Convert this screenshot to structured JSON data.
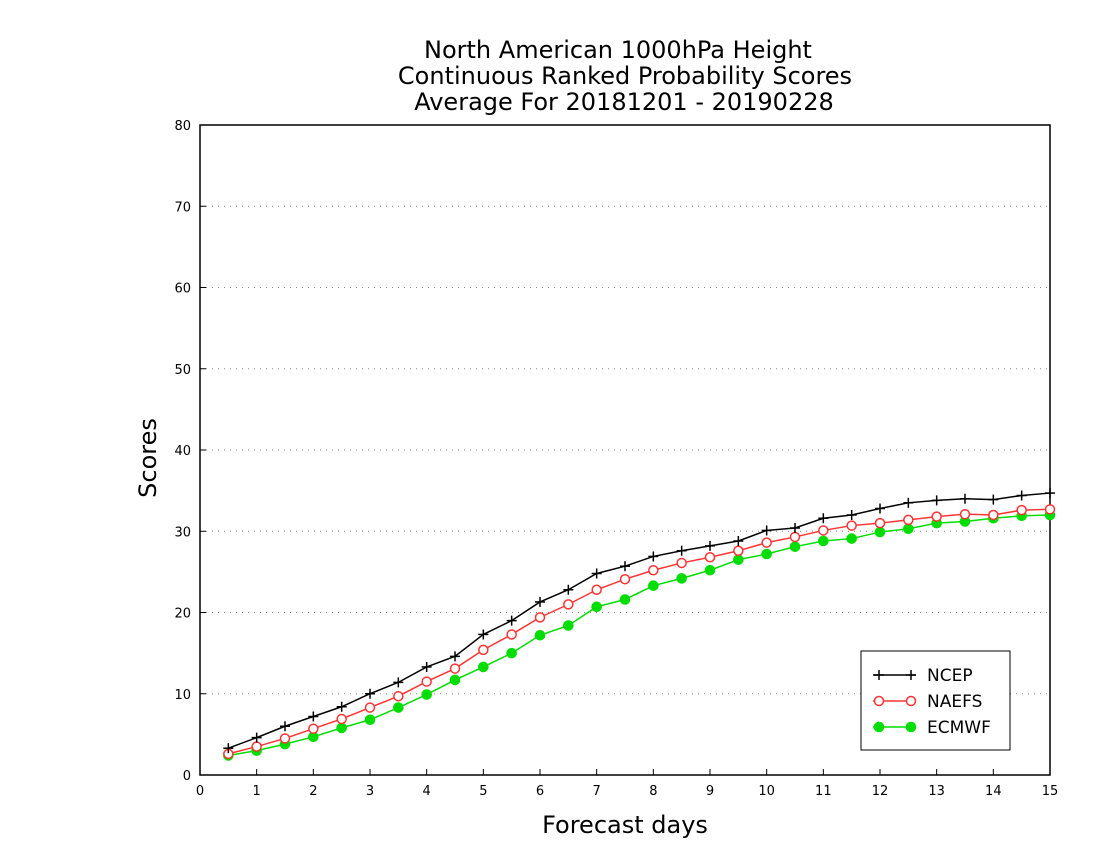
{
  "chart_data": {
    "type": "line",
    "title_lines": [
      "North American 1000hPa Height",
      "Continuous Ranked Probability Scores",
      "Average For 20181201 - 20190228"
    ],
    "xlabel": "Forecast days",
    "ylabel": "Scores",
    "xlim": [
      0,
      15
    ],
    "ylim": [
      0,
      80
    ],
    "xticks": [
      "0",
      "1",
      "2",
      "3",
      "4",
      "5",
      "6",
      "7",
      "8",
      "9",
      "10",
      "11",
      "12",
      "13",
      "14",
      "15"
    ],
    "yticks": [
      "0",
      "10",
      "20",
      "30",
      "40",
      "50",
      "60",
      "70",
      "80"
    ],
    "grid": "horizontal dotted",
    "legend_position": "bottom-right",
    "x": [
      0.5,
      1,
      1.5,
      2,
      2.5,
      3,
      3.5,
      4,
      4.5,
      5,
      5.5,
      6,
      6.5,
      7,
      7.5,
      8,
      8.5,
      9,
      9.5,
      10,
      10.5,
      11,
      11.5,
      12,
      12.5,
      13,
      13.5,
      14,
      14.5,
      15
    ],
    "series": [
      {
        "name": "NCEP",
        "color": "#000000",
        "marker": "plus",
        "values": [
          3.3,
          4.6,
          6.0,
          7.2,
          8.4,
          10.0,
          11.4,
          13.3,
          14.6,
          17.3,
          19.0,
          21.3,
          22.8,
          24.8,
          25.7,
          26.9,
          27.6,
          28.2,
          28.8,
          30.1,
          30.4,
          31.6,
          32.0,
          32.8,
          33.5,
          33.8,
          34.0,
          33.9,
          34.4,
          34.7
        ]
      },
      {
        "name": "NAEFS",
        "color": "#ff3333",
        "marker": "open-circle",
        "values": [
          2.6,
          3.5,
          4.5,
          5.7,
          6.9,
          8.3,
          9.7,
          11.5,
          13.1,
          15.4,
          17.3,
          19.4,
          21.0,
          22.8,
          24.1,
          25.2,
          26.1,
          26.8,
          27.6,
          28.6,
          29.3,
          30.1,
          30.7,
          31.0,
          31.4,
          31.8,
          32.1,
          32.0,
          32.6,
          32.7
        ]
      },
      {
        "name": "ECMWF",
        "color": "#00dd00",
        "marker": "filled-circle",
        "values": [
          2.4,
          3.0,
          3.8,
          4.7,
          5.8,
          6.8,
          8.3,
          9.9,
          11.7,
          13.3,
          15.0,
          17.2,
          18.4,
          20.7,
          21.6,
          23.3,
          24.2,
          25.2,
          26.5,
          27.2,
          28.1,
          28.8,
          29.1,
          29.9,
          30.3,
          31.0,
          31.2,
          31.6,
          31.9,
          32.0
        ]
      }
    ]
  }
}
